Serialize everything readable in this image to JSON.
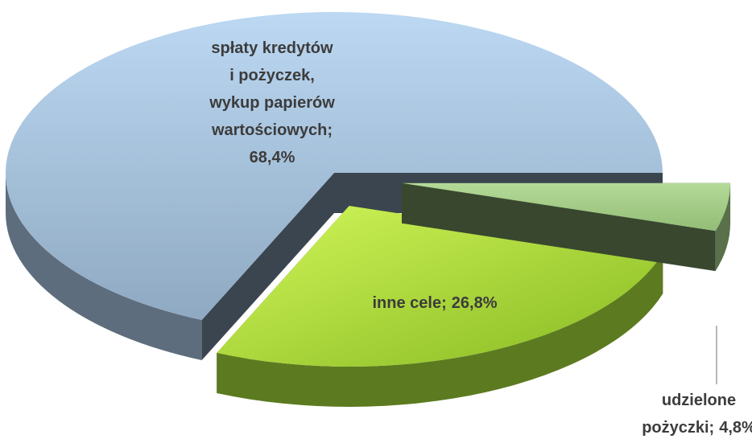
{
  "chart_data": {
    "type": "pie",
    "categories": [
      [
        "spłaty kredytów",
        "i  pożyczek,",
        "wykup papierów",
        "wartościowych;"
      ],
      [
        "inne cele;"
      ],
      [
        "udzielone",
        "pożyczki;"
      ]
    ],
    "values": [
      68.4,
      26.8,
      4.8
    ],
    "value_labels": [
      "68,4%",
      "26,8%",
      "4,8%"
    ],
    "colors": [
      "#a9c6e4",
      "#a8e03a",
      "#a3cc86"
    ],
    "three_d": true
  }
}
